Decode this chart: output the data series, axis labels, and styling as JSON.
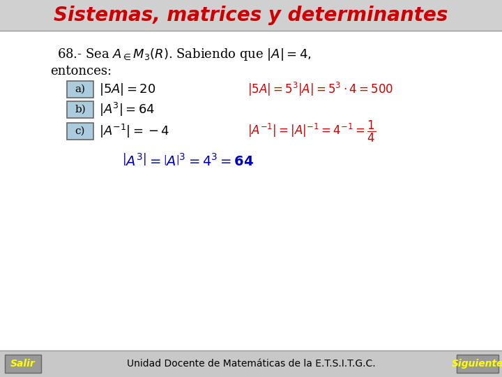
{
  "title": "Sistemas, matrices y determinantes",
  "title_color": "#cc0000",
  "title_fontsize": 20,
  "bg_color": "#ffffff",
  "header_bg": "#d0d0d0",
  "footer_bg": "#c8c8c8",
  "footer_text": "Unidad Docente de Matemáticas de la E.T.S.I.T.G.C.",
  "box_color": "#aaccdd",
  "box_border": "#666666",
  "salir_text": "Salir",
  "siguiente_text": "Siguiente",
  "button_color": "#ffff00",
  "button_bg": "#999999"
}
